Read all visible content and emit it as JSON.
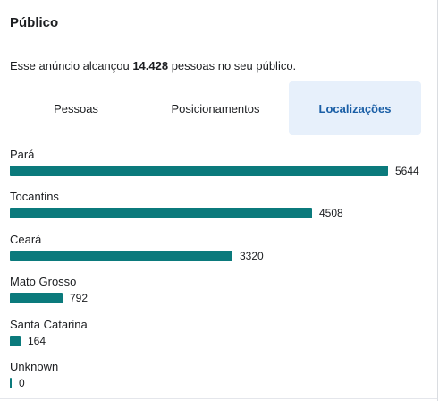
{
  "section": {
    "title": "Público",
    "reach_prefix": "Esse anúncio alcançou ",
    "reach_count": "14.428",
    "reach_suffix": " pessoas no seu público."
  },
  "tabs": [
    {
      "label": "Pessoas",
      "selected": false
    },
    {
      "label": "Posicionamentos",
      "selected": false
    },
    {
      "label": "Localizações",
      "selected": true
    }
  ],
  "colors": {
    "bar": "#0b7a7c",
    "active_tab_bg": "#e7f0fb",
    "active_tab_text": "#1b5fa6"
  },
  "locations": {
    "max_value": 5644,
    "items": [
      {
        "label": "Pará",
        "value": 5644,
        "value_text": "5644"
      },
      {
        "label": "Tocantins",
        "value": 4508,
        "value_text": "4508"
      },
      {
        "label": "Ceará",
        "value": 3320,
        "value_text": "3320"
      },
      {
        "label": "Mato Grosso",
        "value": 792,
        "value_text": "792"
      },
      {
        "label": "Santa Catarina",
        "value": 164,
        "value_text": "164"
      },
      {
        "label": "Unknown",
        "value": 0,
        "value_text": "0"
      }
    ]
  }
}
